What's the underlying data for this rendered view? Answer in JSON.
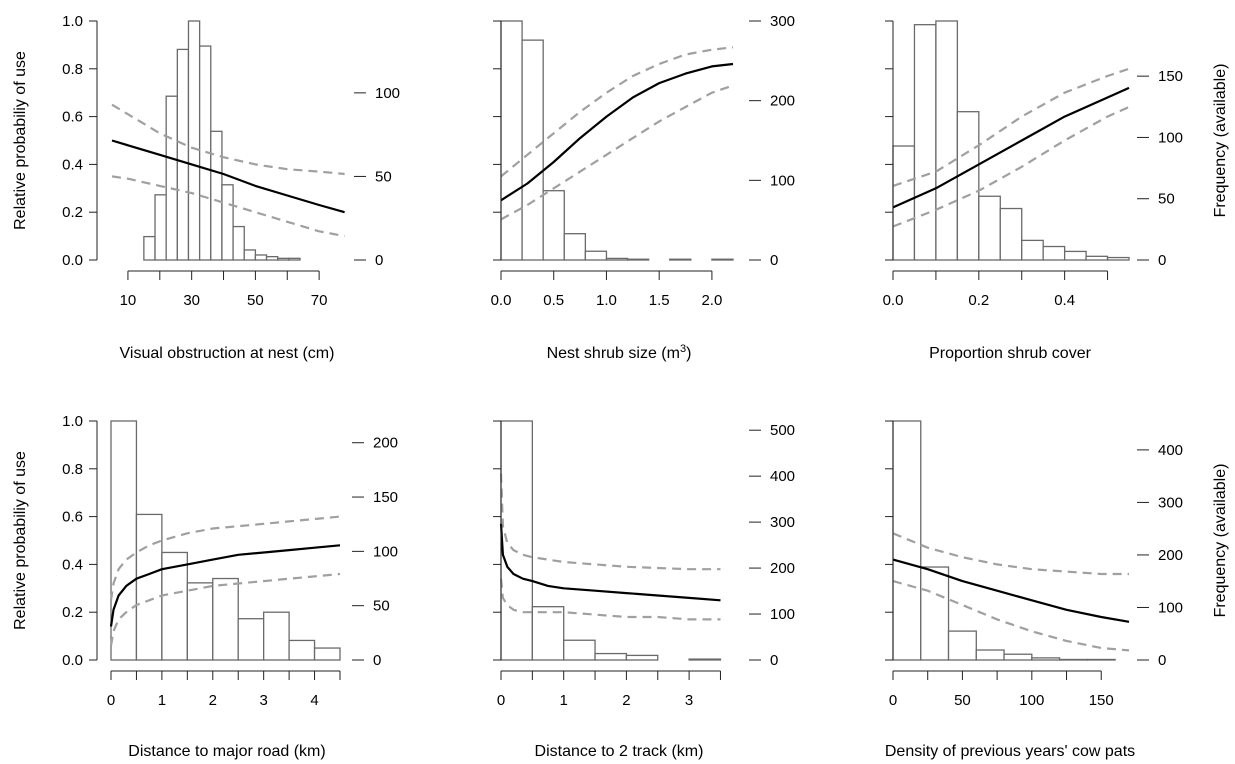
{
  "figure": {
    "left_axis_title": "Relative probabiliy of use",
    "right_axis_title": "Frequency (available)"
  },
  "chart_data": [
    {
      "type": "bar",
      "xlabel": "Visual obstruction at nest (cm)",
      "xlim": [
        5,
        80
      ],
      "xticks": [
        10,
        20,
        30,
        40,
        50,
        60,
        70
      ],
      "xtick_labels": [
        "10",
        "",
        "30",
        "",
        "50",
        "",
        "70"
      ],
      "ylabel": "Relative probabiliy of use",
      "ylim": [
        0,
        1
      ],
      "yticks": [
        0.0,
        0.2,
        0.4,
        0.6,
        0.8,
        1.0
      ],
      "ytick_labels": [
        "0.0",
        "0.2",
        "0.4",
        "0.6",
        "0.8",
        "1.0"
      ],
      "y2label": "",
      "y2lim": [
        0,
        143
      ],
      "y2ticks": [
        0,
        50,
        100
      ],
      "y2tick_labels": [
        "0",
        "50",
        "100"
      ],
      "histogram": {
        "bin_edges": [
          15,
          18.5,
          22,
          25.5,
          29,
          32.5,
          36,
          39.5,
          43,
          46.5,
          50,
          53.5,
          57,
          60.5,
          64,
          67.5,
          71,
          74.5,
          78
        ],
        "counts": [
          14,
          39,
          98,
          126,
          143,
          128,
          77,
          45,
          20,
          6,
          3,
          2,
          1,
          1,
          0,
          0,
          0,
          0
        ]
      },
      "series": [
        {
          "role": "fit",
          "x": [
            5,
            10,
            20,
            30,
            40,
            50,
            60,
            70,
            78
          ],
          "y": [
            0.5,
            0.48,
            0.44,
            0.4,
            0.36,
            0.31,
            0.27,
            0.23,
            0.2
          ]
        },
        {
          "role": "upper_ci",
          "x": [
            5,
            10,
            20,
            30,
            40,
            50,
            60,
            70,
            78
          ],
          "y": [
            0.65,
            0.61,
            0.53,
            0.47,
            0.43,
            0.4,
            0.38,
            0.37,
            0.36
          ]
        },
        {
          "role": "lower_ci",
          "x": [
            5,
            10,
            20,
            30,
            40,
            50,
            60,
            70,
            78
          ],
          "y": [
            0.35,
            0.34,
            0.31,
            0.28,
            0.24,
            0.2,
            0.16,
            0.12,
            0.1
          ]
        }
      ]
    },
    {
      "type": "bar",
      "xlabel": "Nest shrub size (m",
      "xlabel_sup": "3",
      "xlabel_after": ")",
      "xlim": [
        0,
        2.2
      ],
      "xticks": [
        0.0,
        0.5,
        1.0,
        1.5,
        2.0
      ],
      "xtick_labels": [
        "0.0",
        "0.5",
        "1.0",
        "1.5",
        "2.0"
      ],
      "ylabel": "",
      "ylim": [
        0,
        1
      ],
      "yticks": [
        0.0,
        0.2,
        0.4,
        0.6,
        0.8,
        1.0
      ],
      "ytick_labels": [
        "",
        "",
        "",
        "",
        "",
        ""
      ],
      "y2label": "",
      "y2lim": [
        0,
        300
      ],
      "y2ticks": [
        0,
        100,
        200,
        300
      ],
      "y2tick_labels": [
        "0",
        "100",
        "200",
        "300"
      ],
      "histogram": {
        "bin_edges": [
          0.0,
          0.2,
          0.4,
          0.6,
          0.8,
          1.0,
          1.2,
          1.4,
          1.6,
          1.8,
          2.0,
          2.2
        ],
        "counts": [
          300,
          276,
          87,
          33,
          11,
          2,
          1,
          0,
          1,
          0,
          1
        ]
      },
      "series": [
        {
          "role": "fit",
          "x": [
            0.0,
            0.25,
            0.5,
            0.75,
            1.0,
            1.25,
            1.5,
            1.75,
            2.0,
            2.2
          ],
          "y": [
            0.25,
            0.32,
            0.41,
            0.51,
            0.6,
            0.68,
            0.74,
            0.78,
            0.81,
            0.82
          ]
        },
        {
          "role": "upper_ci",
          "x": [
            0.0,
            0.25,
            0.5,
            0.75,
            1.0,
            1.25,
            1.5,
            1.75,
            2.0,
            2.2
          ],
          "y": [
            0.35,
            0.44,
            0.53,
            0.62,
            0.7,
            0.77,
            0.82,
            0.86,
            0.88,
            0.89
          ]
        },
        {
          "role": "lower_ci",
          "x": [
            0.0,
            0.25,
            0.5,
            0.75,
            1.0,
            1.25,
            1.5,
            1.75,
            2.0,
            2.2
          ],
          "y": [
            0.17,
            0.23,
            0.3,
            0.37,
            0.44,
            0.51,
            0.58,
            0.64,
            0.7,
            0.73
          ]
        }
      ]
    },
    {
      "type": "bar",
      "xlabel": "Proportion shrub cover",
      "xlim": [
        0,
        0.55
      ],
      "xticks": [
        0.0,
        0.1,
        0.2,
        0.3,
        0.4,
        0.5
      ],
      "xtick_labels": [
        "0.0",
        "",
        "0.2",
        "",
        "0.4",
        ""
      ],
      "ylabel": "",
      "ylim": [
        0,
        1
      ],
      "yticks": [
        0.0,
        0.2,
        0.4,
        0.6,
        0.8,
        1.0
      ],
      "ytick_labels": [
        "",
        "",
        "",
        "",
        "",
        ""
      ],
      "y2label": "Frequency (available)",
      "y2lim": [
        0,
        195
      ],
      "y2ticks": [
        0,
        50,
        100,
        150
      ],
      "y2tick_labels": [
        "0",
        "50",
        "100",
        "150"
      ],
      "histogram": {
        "bin_edges": [
          0.0,
          0.05,
          0.1,
          0.15,
          0.2,
          0.25,
          0.3,
          0.35,
          0.4,
          0.45,
          0.5,
          0.55
        ],
        "counts": [
          93,
          192,
          195,
          121,
          52,
          42,
          16,
          11,
          7,
          3,
          2
        ]
      },
      "series": [
        {
          "role": "fit",
          "x": [
            0.0,
            0.1,
            0.2,
            0.3,
            0.4,
            0.5,
            0.55
          ],
          "y": [
            0.22,
            0.3,
            0.4,
            0.5,
            0.6,
            0.68,
            0.72
          ]
        },
        {
          "role": "upper_ci",
          "x": [
            0.0,
            0.1,
            0.2,
            0.3,
            0.4,
            0.5,
            0.55
          ],
          "y": [
            0.31,
            0.37,
            0.48,
            0.6,
            0.7,
            0.77,
            0.8
          ]
        },
        {
          "role": "lower_ci",
          "x": [
            0.0,
            0.1,
            0.2,
            0.3,
            0.4,
            0.5,
            0.55
          ],
          "y": [
            0.14,
            0.21,
            0.29,
            0.39,
            0.5,
            0.6,
            0.64
          ]
        }
      ]
    },
    {
      "type": "bar",
      "xlabel": "Distance to major road (km)",
      "xlim": [
        0,
        4.5
      ],
      "xticks": [
        0,
        0.5,
        1,
        1.5,
        2,
        2.5,
        3,
        3.5,
        4,
        4.5
      ],
      "xtick_labels": [
        "0",
        "",
        "1",
        "",
        "2",
        "",
        "3",
        "",
        "4",
        ""
      ],
      "ylabel": "Relative probabiliy of use",
      "ylim": [
        0,
        1
      ],
      "yticks": [
        0.0,
        0.2,
        0.4,
        0.6,
        0.8,
        1.0
      ],
      "ytick_labels": [
        "0.0",
        "0.2",
        "0.4",
        "0.6",
        "0.8",
        "1.0"
      ],
      "y2label": "",
      "y2lim": [
        0,
        220
      ],
      "y2ticks": [
        0,
        50,
        100,
        150,
        200
      ],
      "y2tick_labels": [
        "0",
        "50",
        "100",
        "150",
        "200"
      ],
      "histogram": {
        "bin_edges": [
          0.0,
          0.5,
          1.0,
          1.5,
          2.0,
          2.5,
          3.0,
          3.5,
          4.0,
          4.5
        ],
        "counts": [
          220,
          134,
          99,
          71,
          75,
          38,
          44,
          18,
          11
        ]
      },
      "series": [
        {
          "role": "fit",
          "x": [
            0.0,
            0.05,
            0.15,
            0.3,
            0.5,
            0.75,
            1.0,
            1.5,
            2.0,
            2.5,
            3.0,
            3.5,
            4.0,
            4.5
          ],
          "y": [
            0.14,
            0.21,
            0.27,
            0.31,
            0.34,
            0.36,
            0.38,
            0.4,
            0.42,
            0.44,
            0.45,
            0.46,
            0.47,
            0.48
          ]
        },
        {
          "role": "upper_ci",
          "x": [
            0.0,
            0.05,
            0.15,
            0.3,
            0.5,
            0.75,
            1.0,
            1.5,
            2.0,
            2.5,
            3.0,
            3.5,
            4.0,
            4.5
          ],
          "y": [
            0.25,
            0.32,
            0.38,
            0.42,
            0.45,
            0.48,
            0.5,
            0.53,
            0.55,
            0.56,
            0.57,
            0.58,
            0.59,
            0.6
          ]
        },
        {
          "role": "lower_ci",
          "x": [
            0.0,
            0.05,
            0.15,
            0.3,
            0.5,
            0.75,
            1.0,
            1.5,
            2.0,
            2.5,
            3.0,
            3.5,
            4.0,
            4.5
          ],
          "y": [
            0.06,
            0.12,
            0.17,
            0.2,
            0.23,
            0.25,
            0.27,
            0.29,
            0.31,
            0.32,
            0.33,
            0.34,
            0.35,
            0.36
          ]
        }
      ]
    },
    {
      "type": "bar",
      "xlabel": "Distance to 2 track (km)",
      "xlim": [
        0,
        3.7
      ],
      "xticks": [
        0,
        0.5,
        1,
        1.5,
        2,
        2.5,
        3,
        3.5
      ],
      "xtick_labels": [
        "0",
        "",
        "1",
        "",
        "2",
        "",
        "3",
        ""
      ],
      "ylabel": "",
      "ylim": [
        0,
        1
      ],
      "yticks": [
        0.0,
        0.2,
        0.4,
        0.6,
        0.8,
        1.0
      ],
      "ytick_labels": [
        "",
        "",
        "",
        "",
        "",
        ""
      ],
      "y2label": "",
      "y2lim": [
        0,
        520
      ],
      "y2ticks": [
        0,
        100,
        200,
        300,
        400,
        500
      ],
      "y2tick_labels": [
        "0",
        "100",
        "200",
        "300",
        "400",
        "500"
      ],
      "histogram": {
        "bin_edges": [
          0.0,
          0.5,
          1.0,
          1.5,
          2.0,
          2.5,
          3.0,
          3.5
        ],
        "counts": [
          520,
          116,
          43,
          14,
          10,
          0,
          2
        ]
      },
      "series": [
        {
          "role": "fit",
          "x": [
            0.0,
            0.03,
            0.1,
            0.2,
            0.35,
            0.5,
            0.75,
            1.0,
            1.5,
            2.0,
            2.5,
            3.0,
            3.5
          ],
          "y": [
            0.57,
            0.44,
            0.39,
            0.36,
            0.34,
            0.33,
            0.31,
            0.3,
            0.29,
            0.28,
            0.27,
            0.26,
            0.25
          ]
        },
        {
          "role": "upper_ci",
          "x": [
            0.0,
            0.03,
            0.1,
            0.2,
            0.35,
            0.5,
            0.75,
            1.0,
            1.5,
            2.0,
            2.5,
            3.0,
            3.5
          ],
          "y": [
            0.78,
            0.56,
            0.49,
            0.46,
            0.44,
            0.43,
            0.42,
            0.41,
            0.4,
            0.39,
            0.385,
            0.38,
            0.38
          ]
        },
        {
          "role": "lower_ci",
          "x": [
            0.0,
            0.03,
            0.1,
            0.2,
            0.35,
            0.5,
            0.75,
            1.0,
            1.5,
            2.0,
            2.5,
            3.0,
            3.5
          ],
          "y": [
            0.34,
            0.26,
            0.23,
            0.21,
            0.2,
            0.2,
            0.2,
            0.2,
            0.19,
            0.18,
            0.18,
            0.17,
            0.17
          ]
        }
      ]
    },
    {
      "type": "bar",
      "xlabel": "Density of previous years' cow pats",
      "xlim": [
        0,
        170
      ],
      "xticks": [
        0,
        25,
        50,
        75,
        100,
        125,
        150
      ],
      "xtick_labels": [
        "0",
        "",
        "50",
        "",
        "100",
        "",
        "150"
      ],
      "ylabel": "",
      "ylim": [
        0,
        1
      ],
      "yticks": [
        0.0,
        0.2,
        0.4,
        0.6,
        0.8,
        1.0
      ],
      "ytick_labels": [
        "",
        "",
        "",
        "",
        "",
        ""
      ],
      "y2label": "Frequency (available)",
      "y2lim": [
        0,
        455
      ],
      "y2ticks": [
        0,
        100,
        200,
        300,
        400
      ],
      "y2tick_labels": [
        "0",
        "100",
        "200",
        "300",
        "400"
      ],
      "histogram": {
        "bin_edges": [
          0,
          20,
          40,
          60,
          80,
          100,
          120,
          140,
          160
        ],
        "counts": [
          455,
          177,
          55,
          19,
          11,
          4,
          1,
          1
        ]
      },
      "series": [
        {
          "role": "fit",
          "x": [
            0,
            25,
            50,
            75,
            100,
            125,
            150,
            170
          ],
          "y": [
            0.42,
            0.38,
            0.33,
            0.29,
            0.25,
            0.21,
            0.18,
            0.16
          ]
        },
        {
          "role": "upper_ci",
          "x": [
            0,
            25,
            50,
            75,
            100,
            125,
            150,
            170
          ],
          "y": [
            0.53,
            0.47,
            0.43,
            0.4,
            0.38,
            0.37,
            0.36,
            0.36
          ]
        },
        {
          "role": "lower_ci",
          "x": [
            0,
            25,
            50,
            75,
            100,
            125,
            150,
            170
          ],
          "y": [
            0.33,
            0.29,
            0.23,
            0.17,
            0.12,
            0.08,
            0.05,
            0.04
          ]
        }
      ]
    }
  ],
  "colors": {
    "fit_line": "#000000",
    "ci_line": "#a0a0a0",
    "histogram_edge": "#6a6a6a",
    "axis": "#222222"
  }
}
